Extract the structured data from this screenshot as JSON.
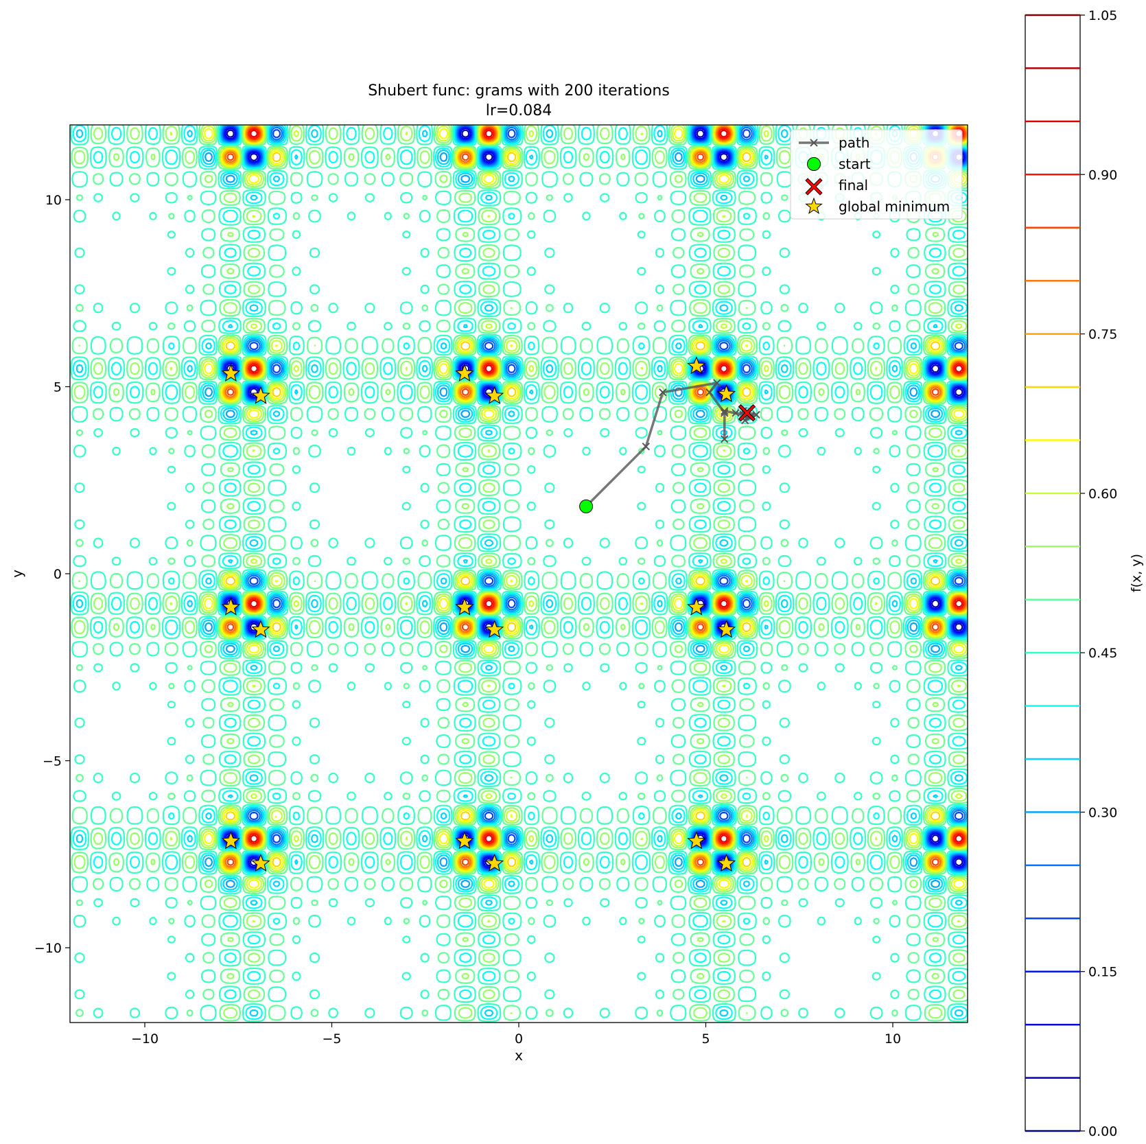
{
  "chart_data": {
    "type": "contour",
    "title": "Shubert func: grams with 200 iterations",
    "subtitle": "lr=0.084",
    "xlabel": "x",
    "ylabel": "y",
    "xlim": [
      -12,
      12
    ],
    "ylim": [
      -12,
      12
    ],
    "x_ticks": [
      -10,
      -5,
      0,
      5,
      10
    ],
    "y_ticks": [
      -10,
      -5,
      0,
      5,
      10
    ],
    "x_tick_labels": [
      "−10",
      "−5",
      "0",
      "5",
      "10"
    ],
    "y_tick_labels": [
      "−10",
      "−5",
      "0",
      "5",
      "10"
    ],
    "colorbar": {
      "label": "f(x, y)",
      "range": [
        0.0,
        1.05
      ],
      "ticks": [
        0.0,
        0.15,
        0.3,
        0.45,
        0.6,
        0.75,
        0.9,
        1.05
      ],
      "tick_labels": [
        "0.00",
        "0.15",
        "0.30",
        "0.45",
        "0.60",
        "0.75",
        "0.90",
        "1.05"
      ],
      "levels": [
        0.0,
        0.05,
        0.1,
        0.15,
        0.2,
        0.25,
        0.3,
        0.35,
        0.4,
        0.45,
        0.5,
        0.55,
        0.6,
        0.65,
        0.7,
        0.75,
        0.8,
        0.85,
        0.9,
        0.95,
        1.0,
        1.05
      ],
      "colormap": "jet"
    },
    "legend": {
      "placement": "top-right",
      "entries": [
        "path",
        "start",
        "final",
        "global minimum"
      ]
    },
    "series": [
      {
        "name": "path",
        "color": "#555555",
        "x": [
          1.8,
          3.4,
          3.85,
          5.3,
          5.1,
          5.5,
          5.5,
          5.5,
          6.0,
          5.8,
          6.2,
          6.0,
          6.35,
          6.05,
          6.15,
          6.05,
          6.1
        ],
        "y": [
          1.8,
          3.4,
          4.85,
          5.1,
          4.85,
          4.3,
          3.6,
          4.35,
          4.25,
          4.3,
          4.2,
          4.35,
          4.25,
          4.1,
          4.3,
          4.25,
          4.3
        ]
      },
      {
        "name": "start",
        "color": "#00ff00",
        "x": [
          1.8
        ],
        "y": [
          1.8
        ]
      },
      {
        "name": "final",
        "color": "#ff0000",
        "x": [
          6.1
        ],
        "y": [
          4.3
        ]
      },
      {
        "name": "global minimum",
        "color": "#ffd700",
        "x": [
          -7.7,
          -6.9,
          -1.45,
          -0.65,
          4.75,
          5.55,
          -7.7,
          -6.9,
          -1.45,
          -0.65,
          4.75,
          5.55,
          -7.7,
          -6.9,
          -1.45,
          -0.65,
          4.75,
          5.55
        ],
        "y": [
          5.35,
          4.75,
          5.35,
          4.75,
          5.55,
          4.8,
          -0.9,
          -1.5,
          -0.9,
          -1.5,
          -0.9,
          -1.5,
          -7.15,
          -7.75,
          -7.15,
          -7.75,
          -7.15,
          -7.75
        ]
      }
    ]
  }
}
